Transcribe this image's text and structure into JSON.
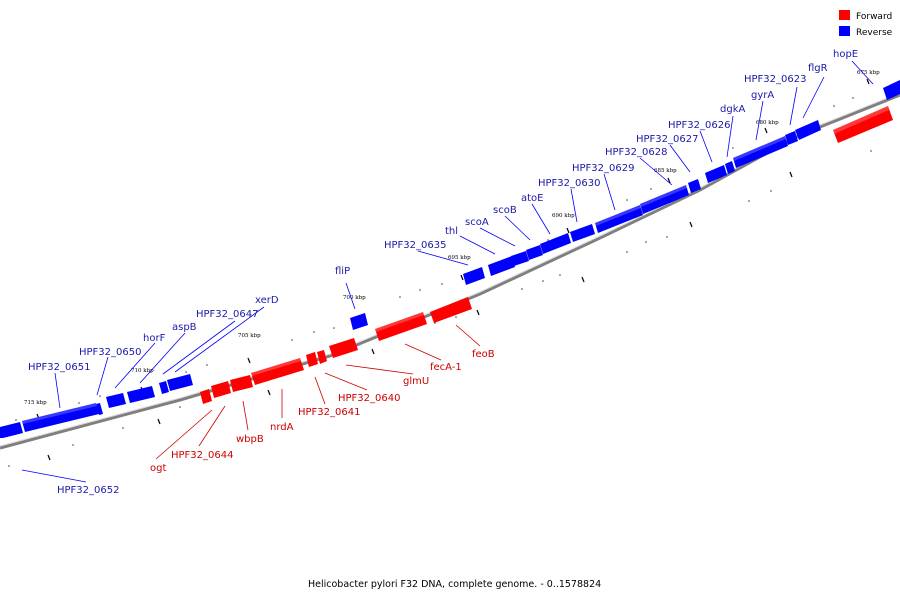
{
  "caption": "Helicobacter pylori F32 DNA, complete genome. - 0..1578824",
  "legend": [
    {
      "label": "Forward",
      "color": "#ff0000"
    },
    {
      "label": "Reverse",
      "color": "#0000ff"
    }
  ],
  "colors": {
    "forward": "#ff0000",
    "reverse": "#0000ff",
    "backbone": "#7f7f7f",
    "label_forward": "#cc0000",
    "label_reverse": "#1a1aa8"
  },
  "ticks": [
    "675 kbp",
    "680 kbp",
    "685 kbp",
    "690 kbp",
    "695 kbp",
    "700 kbp",
    "705 kbp",
    "710 kbp",
    "715 kbp"
  ],
  "genes": [
    {
      "name": "hopE",
      "strand": "reverse"
    },
    {
      "name": "flgR",
      "strand": "reverse"
    },
    {
      "name": "HPF32_0623",
      "strand": "reverse"
    },
    {
      "name": "gyrA",
      "strand": "reverse"
    },
    {
      "name": "dgkA",
      "strand": "reverse"
    },
    {
      "name": "HPF32_0626",
      "strand": "reverse"
    },
    {
      "name": "HPF32_0627",
      "strand": "reverse"
    },
    {
      "name": "HPF32_0628",
      "strand": "reverse"
    },
    {
      "name": "HPF32_0629",
      "strand": "reverse"
    },
    {
      "name": "HPF32_0630",
      "strand": "reverse"
    },
    {
      "name": "atoE",
      "strand": "reverse"
    },
    {
      "name": "scoB",
      "strand": "reverse"
    },
    {
      "name": "scoA",
      "strand": "reverse"
    },
    {
      "name": "thl",
      "strand": "reverse"
    },
    {
      "name": "HPF32_0635",
      "strand": "reverse"
    },
    {
      "name": "fliP",
      "strand": "reverse"
    },
    {
      "name": "xerD",
      "strand": "reverse"
    },
    {
      "name": "HPF32_0647",
      "strand": "reverse"
    },
    {
      "name": "aspB",
      "strand": "reverse"
    },
    {
      "name": "horF",
      "strand": "reverse"
    },
    {
      "name": "HPF32_0650",
      "strand": "reverse"
    },
    {
      "name": "HPF32_0651",
      "strand": "reverse"
    },
    {
      "name": "HPF32_0652",
      "strand": "reverse"
    },
    {
      "name": "feoB",
      "strand": "forward"
    },
    {
      "name": "fecA-1",
      "strand": "forward"
    },
    {
      "name": "glmU",
      "strand": "forward"
    },
    {
      "name": "HPF32_0640",
      "strand": "forward"
    },
    {
      "name": "HPF32_0641",
      "strand": "forward"
    },
    {
      "name": "nrdA",
      "strand": "forward"
    },
    {
      "name": "wbpB",
      "strand": "forward"
    },
    {
      "name": "HPF32_0644",
      "strand": "forward"
    },
    {
      "name": "ogt",
      "strand": "forward"
    }
  ]
}
